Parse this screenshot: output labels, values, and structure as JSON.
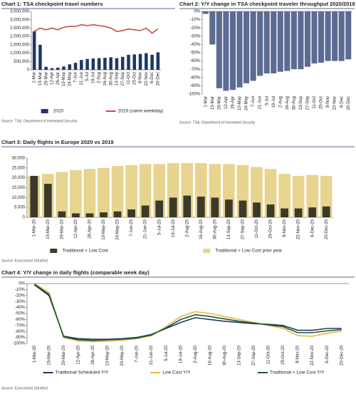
{
  "chart_data": [
    {
      "type": "combo",
      "title": "Chart 1: TSA checkpoint travel numbers",
      "source": "Source: TSA, Department of Homeland Security",
      "categories": [
        "1-Mar",
        "15-Mar",
        "29-Mar",
        "12-Apr",
        "26-Apr",
        "10-May",
        "24-May",
        "7-Jun",
        "21-Jun",
        "5-Jul",
        "19-Jul",
        "2-Aug",
        "16-Aug",
        "30-Aug",
        "13-Sep",
        "27-Sep",
        "11-Oct",
        "25-Oct",
        "8-Nov",
        "22-Nov",
        "6-Dec",
        "20-Dec"
      ],
      "series": [
        {
          "name": "2020",
          "type": "bar",
          "color": "#1f3864",
          "values": [
            2300000,
            1500000,
            180000,
            100000,
            130000,
            200000,
            330000,
            420000,
            590000,
            650000,
            680000,
            700000,
            720000,
            750000,
            700000,
            780000,
            900000,
            920000,
            950000,
            1000000,
            900000,
            1050000
          ]
        },
        {
          "name": "2019 (same weekday)",
          "type": "line",
          "color": "#c0504d",
          "values": [
            2300000,
            2500000,
            2400000,
            2500000,
            2400000,
            2550000,
            2600000,
            2600000,
            2700000,
            2650000,
            2700000,
            2650000,
            2600000,
            2500000,
            2300000,
            2350000,
            2450000,
            2400000,
            2350000,
            2500000,
            2200000,
            2450000
          ]
        }
      ],
      "ylim": [
        0,
        3500000
      ],
      "yticks": [
        {
          "value": 0,
          "label": "0"
        },
        {
          "value": 500000,
          "label": "500,000"
        },
        {
          "value": 1000000,
          "label": "1,000,000"
        },
        {
          "value": 1500000,
          "label": "1,500,000"
        },
        {
          "value": 2000000,
          "label": "2,000,000"
        },
        {
          "value": 2500000,
          "label": "2,500,000"
        },
        {
          "value": 3000000,
          "label": "3,000,000"
        },
        {
          "value": 3500000,
          "label": "3,500,000"
        }
      ]
    },
    {
      "type": "bar",
      "title": "Chart 2: Y/Y change in TSA checkpoint traveler throughput 2020/2019",
      "source": "Source: TSA, Department of Homeland Security",
      "categories": [
        "1-Mar",
        "15-Mar",
        "29-Mar",
        "12-Apr",
        "26-Apr",
        "10-May",
        "24-May",
        "7-Jun",
        "21-Jun",
        "5-Jul",
        "19-Jul",
        "2-Aug",
        "16-Aug",
        "30-Aug",
        "13-Sep",
        "27-Sep",
        "11-Oct",
        "25-Oct",
        "8-Nov",
        "22-Nov",
        "6-Dec",
        "20-Dec"
      ],
      "series": [
        {
          "type": "bar",
          "color": "#5b6b91",
          "values": [
            -3,
            -40,
            -93,
            -96,
            -95,
            -92,
            -87,
            -84,
            -78,
            -75,
            -75,
            -73,
            -72,
            -70,
            -70,
            -67,
            -63,
            -62,
            -60,
            -60,
            -60,
            -58
          ]
        }
      ],
      "ylim": [
        -100,
        0
      ],
      "yticks": [
        {
          "value": 0,
          "label": "0%"
        },
        {
          "value": -10,
          "label": "-10%"
        },
        {
          "value": -20,
          "label": "-20%"
        },
        {
          "value": -30,
          "label": "-30%"
        },
        {
          "value": -40,
          "label": "-40%"
        },
        {
          "value": -50,
          "label": "-50%"
        },
        {
          "value": -60,
          "label": "-60%"
        },
        {
          "value": -70,
          "label": "-70%"
        },
        {
          "value": -80,
          "label": "-80%"
        },
        {
          "value": -90,
          "label": "-90%"
        },
        {
          "value": -100,
          "label": "-100%"
        }
      ]
    },
    {
      "type": "combo",
      "title": "Chart 3: Daily flights in Europe 2020 vs 2019",
      "source": "Source: Eurocontrol (Stratfor)",
      "categories": [
        "1-Mar-20",
        "15-Mar-20",
        "29-Mar-20",
        "12-Apr-20",
        "26-Apr-20",
        "10-May-20",
        "24-May-20",
        "7-Jun-20",
        "21-Jun-20",
        "5-Jul-20",
        "19-Jul-20",
        "2-Aug-20",
        "16-Aug-20",
        "30-Aug-20",
        "13-Sep-20",
        "27-Sep-20",
        "11-Oct-20",
        "25-Oct-20",
        "8-Nov-20",
        "22-Nov-20",
        "6-Dec-20",
        "20-Dec-20"
      ],
      "series": [
        {
          "name": "Traditional + Low Cost",
          "type": "bar",
          "color": "#3b3a2a",
          "values": [
            21000,
            17000,
            3000,
            2000,
            2000,
            2500,
            3000,
            4000,
            6000,
            8500,
            10000,
            11000,
            10500,
            10000,
            9000,
            8500,
            7500,
            6500,
            4500,
            4500,
            5000,
            5500
          ]
        },
        {
          "name": "Traditional + Low Cost prior year",
          "type": "bar",
          "color": "#e8d38f",
          "values": [
            21000,
            22000,
            23000,
            24000,
            24500,
            25000,
            26000,
            26500,
            27000,
            27000,
            27500,
            27500,
            27500,
            27000,
            27000,
            26500,
            25500,
            24500,
            22000,
            21000,
            21500,
            21000
          ]
        }
      ],
      "ylim": [
        0,
        30000
      ],
      "yticks": [
        {
          "value": 0,
          "label": "0"
        },
        {
          "value": 5000,
          "label": "5,000"
        },
        {
          "value": 10000,
          "label": "10,000"
        },
        {
          "value": 15000,
          "label": "15,000"
        },
        {
          "value": 20000,
          "label": "20,000"
        },
        {
          "value": 25000,
          "label": "25,000"
        },
        {
          "value": 30000,
          "label": "30,000"
        }
      ]
    },
    {
      "type": "line",
      "title": "Chart 4: Y/Y change in daily flights (comparable week day)",
      "source": "Source: Eurocontrol (Stratfor)",
      "categories": [
        "1-Mar-20",
        "15-Mar-20",
        "29-Mar-20",
        "12-Apr-20",
        "26-Apr-20",
        "10-May-20",
        "24-May-20",
        "7-Jun-20",
        "21-Jun-20",
        "5-Jul-20",
        "19-Jul-20",
        "2-Aug-20",
        "16-Aug-20",
        "30-Aug-20",
        "13-Sep-20",
        "27-Sep-20",
        "11-Oct-20",
        "25-Oct-20",
        "8-Nov-20",
        "22-Nov-20",
        "6-Dec-20",
        "20-Dec-20"
      ],
      "series": [
        {
          "name": "Traditional Scheduled Y/Y",
          "type": "line",
          "color": "#1f3864",
          "values": [
            -2,
            -20,
            -88,
            -92,
            -93,
            -93,
            -92,
            -90,
            -85,
            -75,
            -65,
            -57,
            -60,
            -63,
            -65,
            -67,
            -68,
            -70,
            -78,
            -78,
            -75,
            -75
          ]
        },
        {
          "name": "Low Cost Y/Y",
          "type": "line",
          "color": "#e6b84a",
          "values": [
            0,
            -15,
            -90,
            -96,
            -97,
            -96,
            -95,
            -92,
            -87,
            -72,
            -55,
            -47,
            -50,
            -55,
            -60,
            -65,
            -70,
            -75,
            -87,
            -88,
            -83,
            -80
          ]
        },
        {
          "name": "Traditional + Low Cost Y/Y",
          "type": "line",
          "color": "#1e5a2d",
          "values": [
            -1,
            -18,
            -89,
            -94,
            -95,
            -94,
            -93,
            -91,
            -86,
            -74,
            -60,
            -52,
            -55,
            -59,
            -63,
            -66,
            -69,
            -72,
            -82,
            -82,
            -79,
            -77
          ]
        }
      ],
      "ylim": [
        -100,
        0
      ],
      "yticks": [
        {
          "value": 0,
          "label": "0%"
        },
        {
          "value": -10,
          "label": "-10%"
        },
        {
          "value": -20,
          "label": "-20%"
        },
        {
          "value": -30,
          "label": "-30%"
        },
        {
          "value": -40,
          "label": "-40%"
        },
        {
          "value": -50,
          "label": "-50%"
        },
        {
          "value": -60,
          "label": "-60%"
        },
        {
          "value": -70,
          "label": "-70%"
        },
        {
          "value": -80,
          "label": "-80%"
        },
        {
          "value": -90,
          "label": "-90%"
        },
        {
          "value": -100,
          "label": "-100%"
        }
      ]
    }
  ]
}
